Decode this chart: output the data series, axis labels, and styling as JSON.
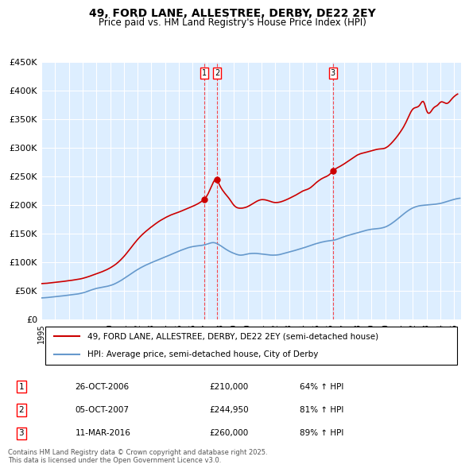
{
  "title": "49, FORD LANE, ALLESTREE, DERBY, DE22 2EY",
  "subtitle": "Price paid vs. HM Land Registry's House Price Index (HPI)",
  "legend_property": "49, FORD LANE, ALLESTREE, DERBY, DE22 2EY (semi-detached house)",
  "legend_hpi": "HPI: Average price, semi-detached house, City of Derby",
  "footer": "Contains HM Land Registry data © Crown copyright and database right 2025.\nThis data is licensed under the Open Government Licence v3.0.",
  "property_color": "#cc0000",
  "hpi_color": "#6699cc",
  "background_color": "#ddeeff",
  "plot_bg_color": "#ddeeff",
  "ylabel_color": "#000000",
  "grid_color": "#ffffff",
  "transactions": [
    {
      "num": 1,
      "date": "26-OCT-2006",
      "date_val": 2006.82,
      "price": 210000,
      "pct": "64% ↑ HPI"
    },
    {
      "num": 2,
      "date": "05-OCT-2007",
      "date_val": 2007.76,
      "price": 244950,
      "pct": "81% ↑ HPI"
    },
    {
      "num": 3,
      "date": "11-MAR-2016",
      "date_val": 2016.19,
      "price": 260000,
      "pct": "89% ↑ HPI"
    }
  ],
  "ylim": [
    0,
    450000
  ],
  "xlim": [
    1995.0,
    2025.5
  ],
  "yticks": [
    0,
    50000,
    100000,
    150000,
    200000,
    250000,
    300000,
    350000,
    400000,
    450000
  ],
  "ytick_labels": [
    "£0",
    "£50K",
    "£100K",
    "£150K",
    "£200K",
    "£250K",
    "£300K",
    "£350K",
    "£400K",
    "£450K"
  ]
}
